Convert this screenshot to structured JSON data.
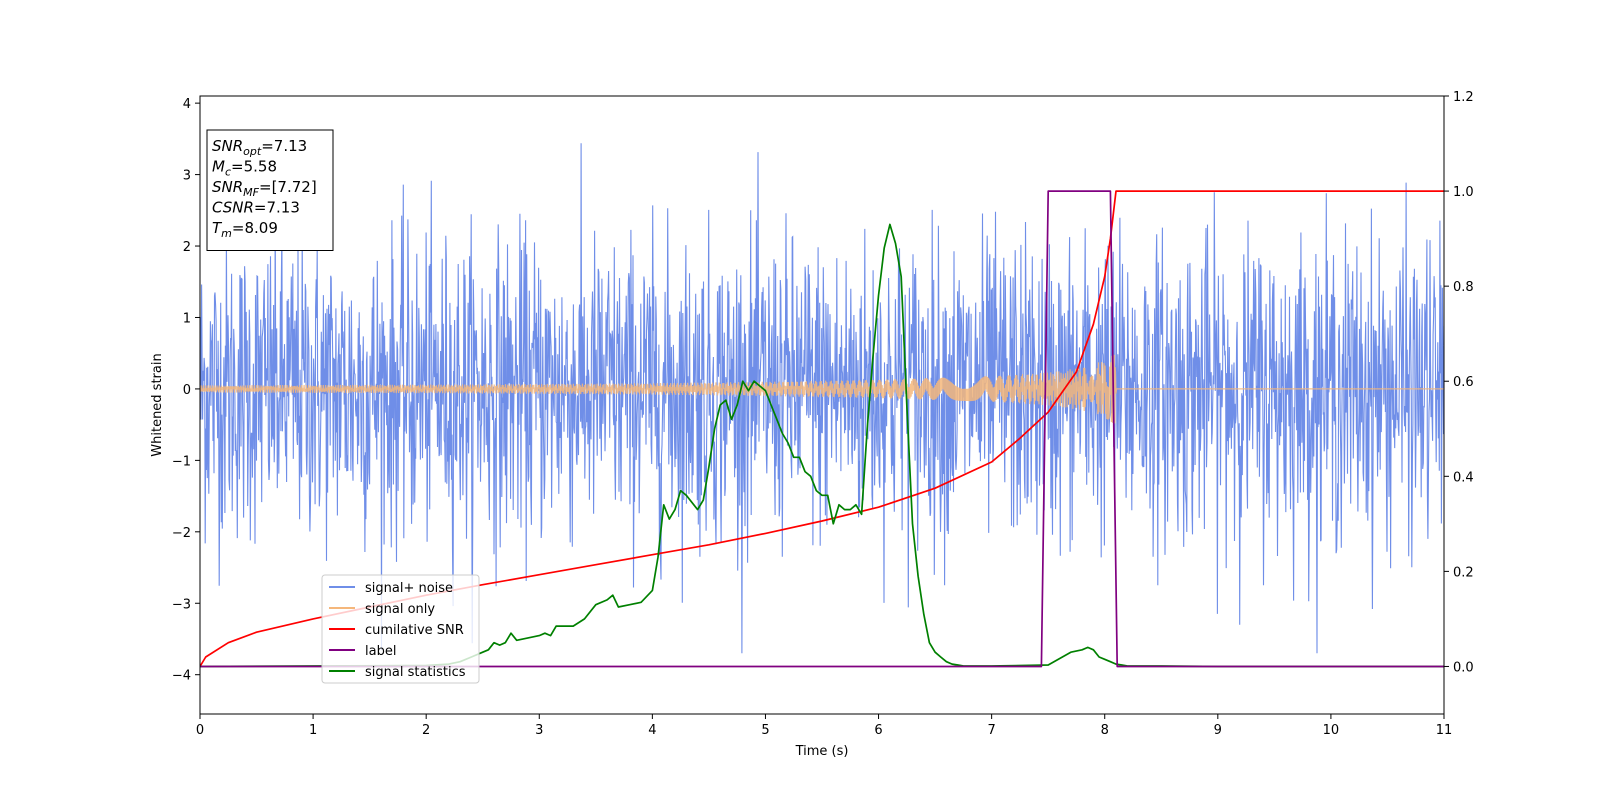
{
  "chart_data": {
    "type": "line",
    "title": "",
    "xlabel": "Time (s)",
    "ylabel": "Whitened strain",
    "y2label": "",
    "xlim": [
      0,
      11
    ],
    "ylim": [
      -4.55,
      4.1
    ],
    "y2lim": [
      -0.1,
      1.2
    ],
    "x_ticks": [
      "0",
      "1",
      "2",
      "3",
      "4",
      "5",
      "6",
      "7",
      "8",
      "9",
      "10",
      "11"
    ],
    "x_tick_values": [
      0,
      1,
      2,
      3,
      4,
      5,
      6,
      7,
      8,
      9,
      10,
      11
    ],
    "y_ticks": [
      "−4",
      "−3",
      "−2",
      "−1",
      "0",
      "1",
      "2",
      "3",
      "4"
    ],
    "y_tick_values": [
      -4,
      -3,
      -2,
      -1,
      0,
      1,
      2,
      3,
      4
    ],
    "y2_ticks": [
      "0.0",
      "0.2",
      "0.4",
      "0.6",
      "0.8",
      "1.0",
      "1.2"
    ],
    "y2_tick_values": [
      0.0,
      0.2,
      0.4,
      0.6,
      0.8,
      1.0,
      1.2
    ],
    "grid": false,
    "legend_position": "lower-left",
    "info_box": {
      "lines": [
        {
          "base": "SNR",
          "sub": "opt",
          "value": "=7.13"
        },
        {
          "base": "M",
          "sub": "c",
          "value": "=5.58"
        },
        {
          "base": "SNR",
          "sub": "MF",
          "value": "=[7.72]"
        },
        {
          "base": "CSNR",
          "sub": "",
          "value": "=7.13"
        },
        {
          "base": "T",
          "sub": "m",
          "value": "=8.09"
        }
      ]
    },
    "series": [
      {
        "name": "signal+ noise",
        "axis": "left",
        "color": "#6f8ee8",
        "style": "noise",
        "description_range": [
          -3.7,
          3.7
        ],
        "x_range": [
          0,
          11
        ]
      },
      {
        "name": "signal only",
        "axis": "left",
        "color": "#f5b77b",
        "style": "chirp",
        "envelope": {
          "x": [
            0,
            1,
            2,
            3,
            4,
            5,
            6,
            7,
            7.5,
            7.8,
            8.0,
            8.09,
            8.1,
            11
          ],
          "amp": [
            0.05,
            0.055,
            0.06,
            0.07,
            0.08,
            0.1,
            0.13,
            0.18,
            0.23,
            0.3,
            0.4,
            0.5,
            0.0,
            0.0
          ]
        }
      },
      {
        "name": "cumilative SNR",
        "axis": "right",
        "color": "#ff0000",
        "x": [
          0,
          0.05,
          0.25,
          0.5,
          1,
          1.5,
          2,
          2.5,
          3,
          3.5,
          4,
          4.5,
          5,
          5.5,
          6,
          6.5,
          7,
          7.25,
          7.5,
          7.75,
          7.9,
          8.0,
          8.05,
          8.1,
          11
        ],
        "values": [
          0.0,
          0.02,
          0.05,
          0.072,
          0.1,
          0.125,
          0.15,
          0.172,
          0.193,
          0.214,
          0.235,
          0.256,
          0.28,
          0.306,
          0.335,
          0.375,
          0.43,
          0.48,
          0.535,
          0.62,
          0.72,
          0.82,
          0.9,
          1.0,
          1.0
        ]
      },
      {
        "name": "label",
        "axis": "right",
        "color": "#800080",
        "x": [
          0,
          7.44,
          7.5,
          8.05,
          8.11,
          11
        ],
        "values": [
          0,
          0,
          1,
          1,
          0,
          0
        ]
      },
      {
        "name": "signal statistics",
        "axis": "right",
        "color": "#008000",
        "x": [
          0,
          1,
          2,
          2.2,
          2.3,
          2.4,
          2.5,
          2.55,
          2.6,
          2.65,
          2.7,
          2.75,
          2.8,
          2.9,
          3.0,
          3.05,
          3.1,
          3.15,
          3.2,
          3.3,
          3.4,
          3.5,
          3.6,
          3.65,
          3.7,
          3.8,
          3.9,
          4.0,
          4.05,
          4.1,
          4.15,
          4.2,
          4.25,
          4.3,
          4.4,
          4.45,
          4.5,
          4.55,
          4.6,
          4.65,
          4.7,
          4.75,
          4.8,
          4.85,
          4.9,
          4.95,
          5.0,
          5.05,
          5.1,
          5.15,
          5.2,
          5.25,
          5.3,
          5.35,
          5.4,
          5.45,
          5.5,
          5.55,
          5.6,
          5.65,
          5.7,
          5.75,
          5.8,
          5.85,
          5.9,
          5.95,
          6.0,
          6.05,
          6.1,
          6.15,
          6.2,
          6.25,
          6.3,
          6.35,
          6.4,
          6.45,
          6.5,
          6.55,
          6.6,
          6.65,
          6.7,
          6.75,
          6.8,
          6.9,
          7.0,
          7.5,
          7.7,
          7.8,
          7.85,
          7.9,
          7.95,
          8.0,
          8.05,
          8.1,
          8.15,
          8.2,
          8.3,
          8.5,
          9,
          11
        ],
        "values": [
          0.0,
          0.001,
          0.002,
          0.005,
          0.01,
          0.02,
          0.03,
          0.035,
          0.05,
          0.045,
          0.05,
          0.07,
          0.055,
          0.06,
          0.065,
          0.07,
          0.065,
          0.085,
          0.085,
          0.085,
          0.1,
          0.13,
          0.14,
          0.15,
          0.125,
          0.13,
          0.135,
          0.16,
          0.23,
          0.34,
          0.31,
          0.33,
          0.37,
          0.36,
          0.33,
          0.35,
          0.42,
          0.5,
          0.55,
          0.56,
          0.52,
          0.55,
          0.6,
          0.58,
          0.6,
          0.59,
          0.58,
          0.55,
          0.52,
          0.49,
          0.47,
          0.44,
          0.44,
          0.41,
          0.4,
          0.37,
          0.36,
          0.36,
          0.3,
          0.34,
          0.33,
          0.33,
          0.34,
          0.32,
          0.5,
          0.65,
          0.78,
          0.88,
          0.93,
          0.89,
          0.82,
          0.55,
          0.3,
          0.19,
          0.11,
          0.05,
          0.03,
          0.02,
          0.01,
          0.005,
          0.003,
          0.001,
          0.001,
          0.001,
          0.001,
          0.003,
          0.03,
          0.035,
          0.04,
          0.035,
          0.02,
          0.015,
          0.01,
          0.005,
          0.003,
          0.001,
          0.001,
          0.001,
          0.0,
          0.0
        ]
      }
    ]
  }
}
